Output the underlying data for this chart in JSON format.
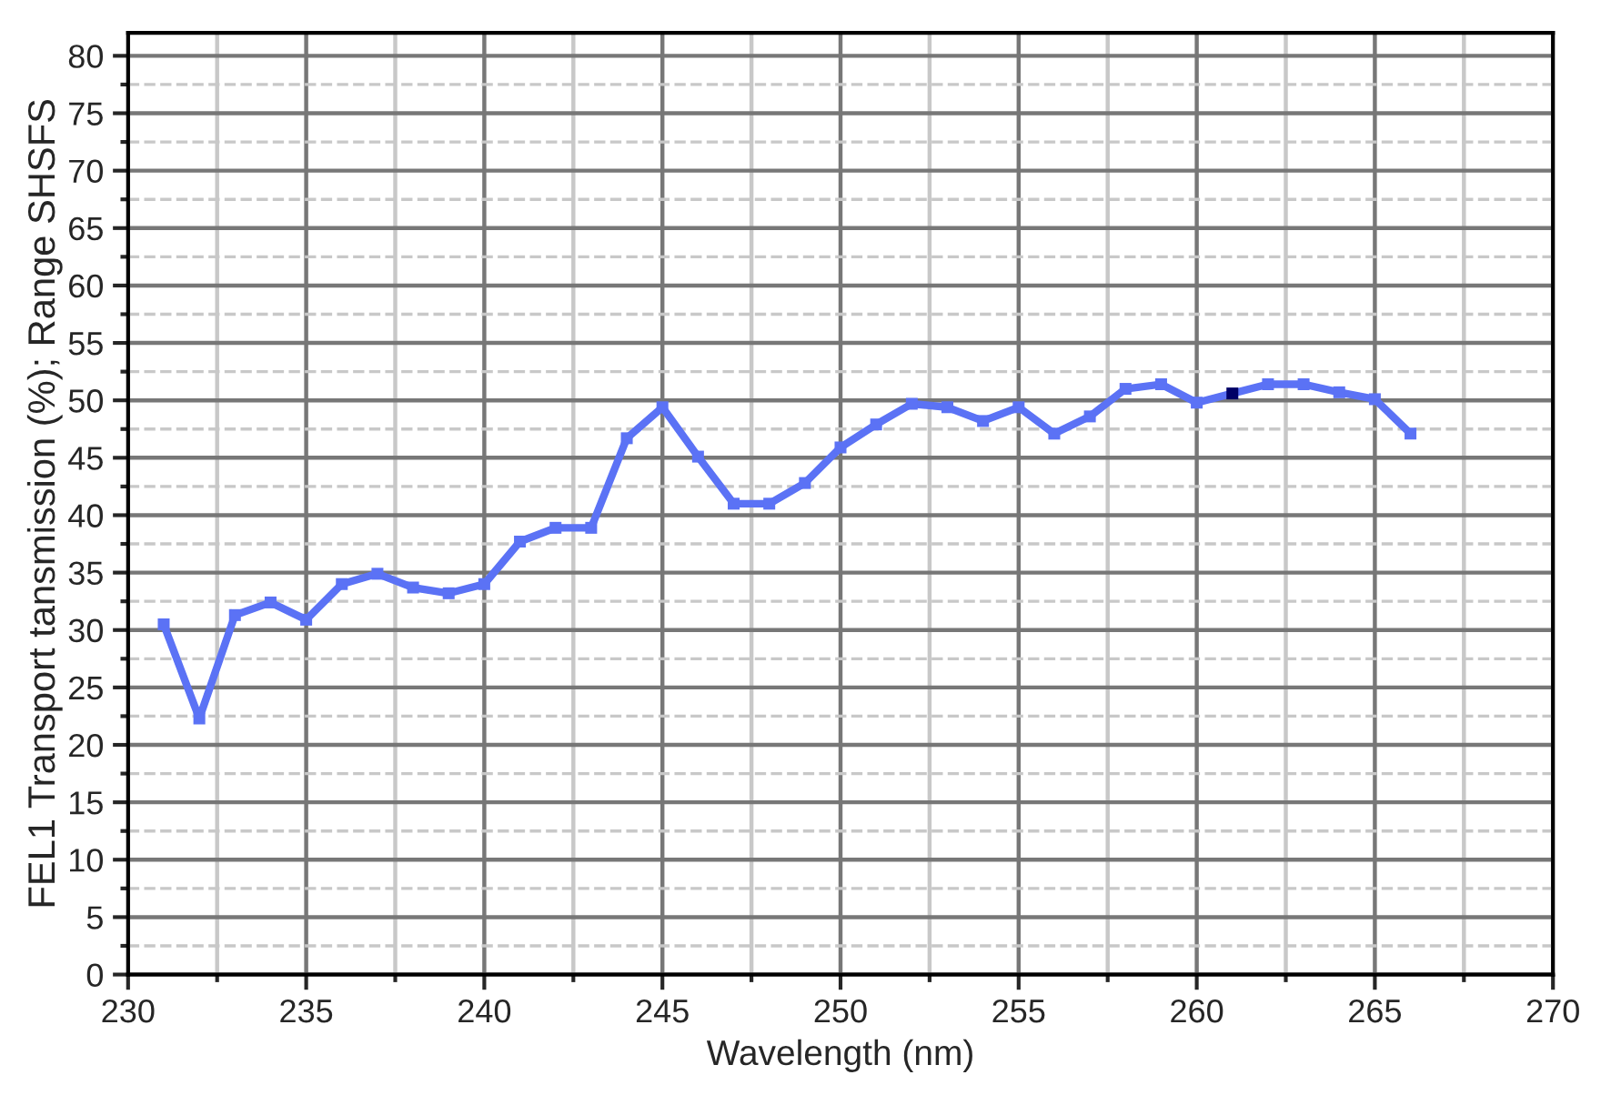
{
  "chart_data": {
    "type": "line",
    "xlabel": "Wavelength (nm)",
    "ylabel": "FEL1 Transport tansmission (%); Range SHSFS",
    "x": [
      231,
      232,
      233,
      234,
      235,
      236,
      237,
      238,
      239,
      240,
      241,
      242,
      243,
      244,
      245,
      246,
      247,
      248,
      249,
      250,
      251,
      252,
      253,
      254,
      255,
      256,
      257,
      258,
      259,
      260,
      261,
      262,
      263,
      264,
      265,
      266
    ],
    "series": [
      {
        "color": "#5b72f5",
        "colors": [
          "#5b72f5",
          "#5b72f5",
          "#5b72f5",
          "#5b72f5",
          "#5b72f5",
          "#5b72f5",
          "#5b72f5",
          "#5b72f5",
          "#5b72f5",
          "#5b72f5",
          "#5b72f5",
          "#5b72f5",
          "#5b72f5",
          "#5b72f5",
          "#5b72f5",
          "#5b72f5",
          "#5b72f5",
          "#5b72f5",
          "#5b72f5",
          "#5b72f5",
          "#5b72f5",
          "#5b72f5",
          "#5b72f5",
          "#5b72f5",
          "#5b72f5",
          "#5b72f5",
          "#5b72f5",
          "#5b72f5",
          "#5b72f5",
          "#5b72f5",
          "#000066",
          "#5b72f5",
          "#5b72f5",
          "#5b72f5",
          "#5b72f5",
          "#5b72f5"
        ],
        "values": [
          30.5,
          22.3,
          31.3,
          32.4,
          30.9,
          34.0,
          34.9,
          33.7,
          33.2,
          34.0,
          37.7,
          38.9,
          38.9,
          46.7,
          49.4,
          45.1,
          41.0,
          41.0,
          42.8,
          45.9,
          47.9,
          49.7,
          49.4,
          48.2,
          49.4,
          47.1,
          48.6,
          51.0,
          51.4,
          49.8,
          50.6,
          51.4,
          51.4,
          50.7,
          50.1,
          47.1
        ]
      }
    ],
    "xlim": [
      230,
      270
    ],
    "xticks": [
      230,
      235,
      240,
      245,
      250,
      255,
      260,
      265,
      270
    ],
    "ylim": [
      0,
      82
    ],
    "yticks": [
      0,
      5,
      10,
      15,
      20,
      25,
      30,
      35,
      40,
      45,
      50,
      55,
      60,
      65,
      70,
      75,
      80
    ],
    "grid": true,
    "marker": "square",
    "line_style": "solid"
  }
}
